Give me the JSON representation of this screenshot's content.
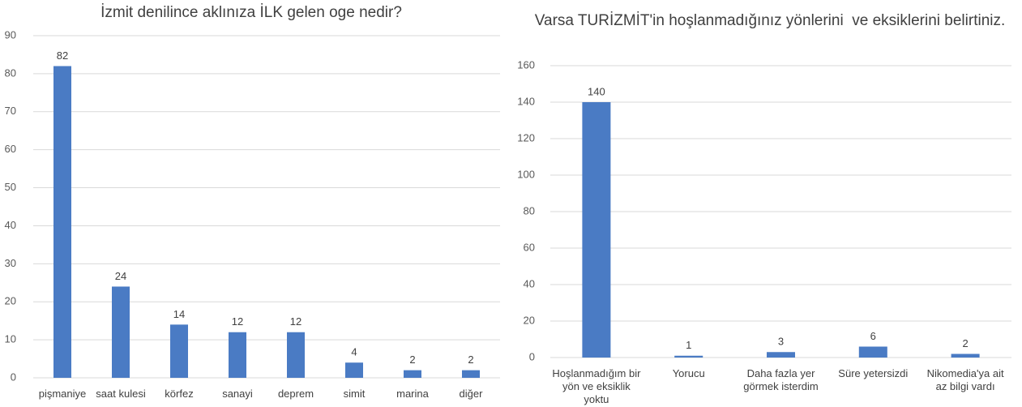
{
  "chart_data": [
    {
      "type": "bar",
      "title": "İzmit denilince aklınıza İLK gelen oge nedir?",
      "categories": [
        "pişmaniye",
        "saat kulesi",
        "körfez",
        "sanayi",
        "deprem",
        "simit",
        "marina",
        "diğer"
      ],
      "values": [
        82,
        24,
        14,
        12,
        12,
        4,
        2,
        2
      ],
      "color": "#4a7bc4",
      "ylim": [
        0,
        90
      ],
      "yticks": [
        0,
        10,
        20,
        30,
        40,
        50,
        60,
        70,
        80,
        90
      ],
      "grid": true
    },
    {
      "type": "bar",
      "title": "Varsa TURİZMİT'in hoşlanmadığınız yönlerini  ve eksiklerini belirtiniz.",
      "categories": [
        "Hoşlanmadığım bir yön ve eksiklik yoktu",
        "Yorucu",
        "Daha fazla yer görmek isterdim",
        "Süre yetersizdi",
        "Nikomedia'ya ait az bilgi vardı"
      ],
      "values": [
        140,
        1,
        3,
        6,
        2
      ],
      "color": "#4a7bc4",
      "ylim": [
        0,
        160
      ],
      "yticks": [
        0,
        20,
        40,
        60,
        80,
        100,
        120,
        140,
        160
      ],
      "grid": true
    }
  ]
}
